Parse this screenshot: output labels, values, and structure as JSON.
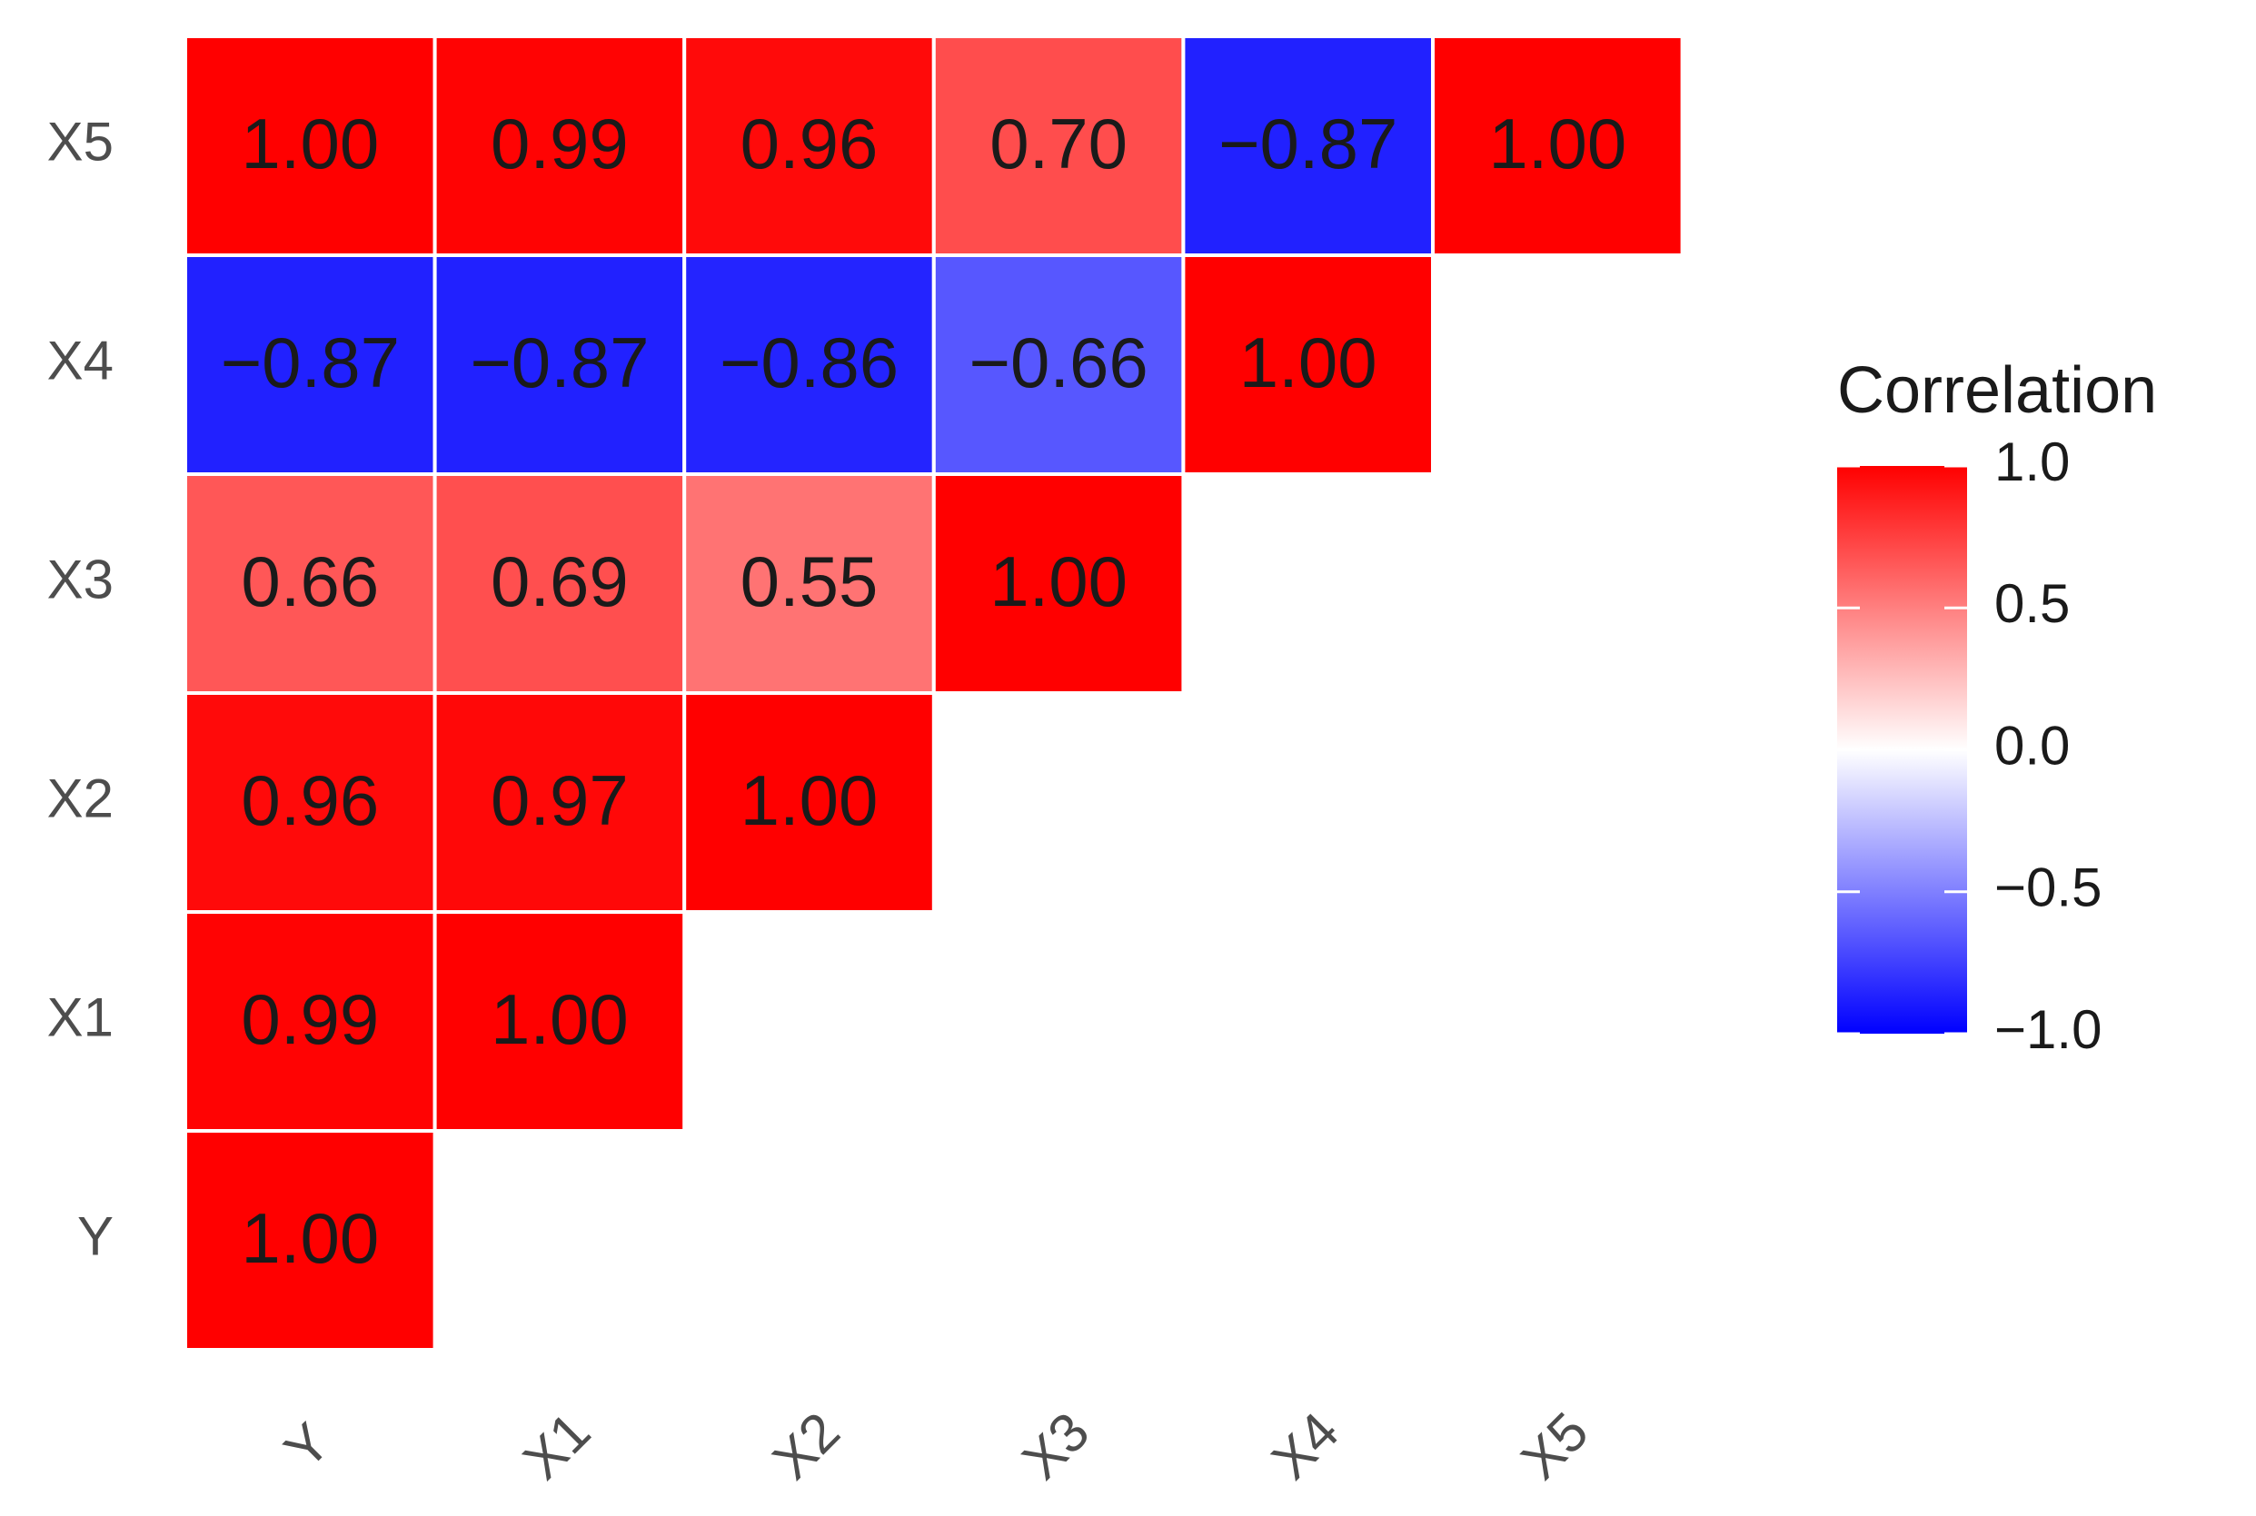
{
  "chart_data": {
    "type": "heatmap",
    "x_categories": [
      "Y",
      "X1",
      "X2",
      "X3",
      "X4",
      "X5"
    ],
    "y_categories": [
      "Y",
      "X1",
      "X2",
      "X3",
      "X4",
      "X5"
    ],
    "values": [
      [
        1,
        null,
        null,
        null,
        null,
        null
      ],
      [
        0.99,
        1,
        null,
        null,
        null,
        null
      ],
      [
        0.96,
        0.97,
        1,
        null,
        null,
        null
      ],
      [
        0.66,
        0.69,
        0.55,
        1,
        null,
        null
      ],
      [
        -0.87,
        -0.87,
        -0.86,
        -0.66,
        1,
        null
      ],
      [
        1,
        0.99,
        0.96,
        0.7,
        -0.87,
        1
      ]
    ],
    "value_labels": [
      [
        "1.00",
        null,
        null,
        null,
        null,
        null
      ],
      [
        "0.99",
        "1.00",
        null,
        null,
        null,
        null
      ],
      [
        "0.96",
        "0.97",
        "1.00",
        null,
        null,
        null
      ],
      [
        "0.66",
        "0.69",
        "0.55",
        "1.00",
        null,
        null
      ],
      [
        "−0.87",
        "−0.87",
        "−0.86",
        "−0.66",
        "1.00",
        null
      ],
      [
        "1.00",
        "0.99",
        "0.96",
        "0.70",
        "−0.87",
        "1.00"
      ]
    ],
    "colors": [
      "#0000ff",
      "#ffffff",
      "#ff0000"
    ],
    "legend_title": "Correlation",
    "clim": [
      -1,
      1
    ],
    "cticks": [
      {
        "value": -1,
        "label": "−1.0"
      },
      {
        "value": -0.5,
        "label": "−0.5"
      },
      {
        "value": 0,
        "label": "0.0"
      },
      {
        "value": 0.5,
        "label": "0.5"
      },
      {
        "value": 1,
        "label": "1.0"
      }
    ]
  }
}
